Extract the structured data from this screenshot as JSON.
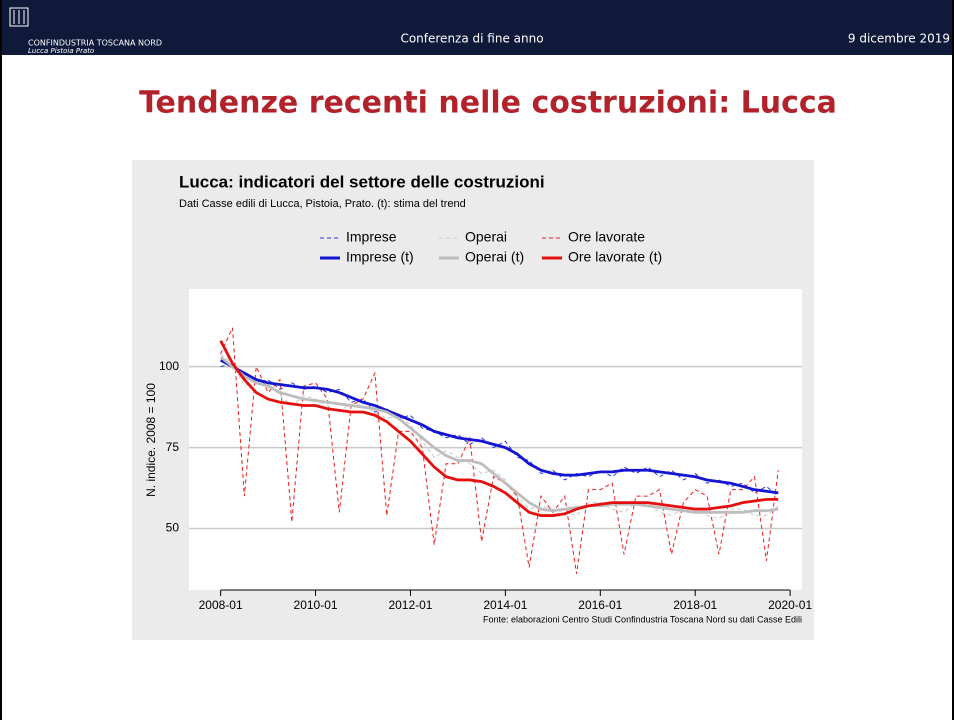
{
  "header": {
    "org": "CONFINDUSTRIA TOSCANA NORD",
    "org_sub": "Lucca Pistoia Prato",
    "event": "Conferenza di fine anno",
    "date": "9 dicembre 2019"
  },
  "title": "Tendenze recenti nelle costruzioni: Lucca",
  "chart_data": {
    "type": "line",
    "title": "Lucca: indicatori del settore delle costruzioni",
    "subtitle": "Dati Casse edili di Lucca, Pistoia, Prato. (t): stima del trend",
    "ylabel": "N. indice. 2008 = 100",
    "caption": "Fonte: elaborazioni Centro Studi Confindustria Toscana Nord su dati Casse Edili",
    "x": [
      "2008-01",
      "2008-04",
      "2008-07",
      "2008-10",
      "2009-01",
      "2009-04",
      "2009-07",
      "2009-10",
      "2010-01",
      "2010-04",
      "2010-07",
      "2010-10",
      "2011-01",
      "2011-04",
      "2011-07",
      "2011-10",
      "2012-01",
      "2012-04",
      "2012-07",
      "2012-10",
      "2013-01",
      "2013-04",
      "2013-07",
      "2013-10",
      "2014-01",
      "2014-04",
      "2014-07",
      "2014-10",
      "2015-01",
      "2015-04",
      "2015-07",
      "2015-10",
      "2016-01",
      "2016-04",
      "2016-07",
      "2016-10",
      "2017-01",
      "2017-04",
      "2017-07",
      "2017-10",
      "2018-01",
      "2018-04",
      "2018-07",
      "2018-10",
      "2019-01",
      "2019-04",
      "2019-07",
      "2019-10"
    ],
    "xlim": [
      "2007-05",
      "2020-04"
    ],
    "xticks": [
      "2008-01",
      "2010-01",
      "2012-01",
      "2014-01",
      "2016-01",
      "2018-01",
      "2020-01"
    ],
    "ylim": [
      31,
      124
    ],
    "yticks": [
      50,
      75,
      100
    ],
    "grid": true,
    "legend": "top",
    "series": [
      {
        "name": "Imprese",
        "color": "#2233e8",
        "dashed": true,
        "values": [
          100,
          101,
          97,
          95,
          96,
          93,
          95,
          93,
          94,
          92,
          93,
          89,
          90,
          86,
          87,
          84,
          85,
          81,
          80,
          78,
          79,
          76,
          78,
          75,
          77,
          72,
          71,
          67,
          68,
          65,
          67,
          66,
          68,
          66,
          69,
          67,
          69,
          66,
          68,
          65,
          67,
          64,
          65,
          63,
          64,
          61,
          63,
          60
        ]
      },
      {
        "name": "Operai",
        "color": "#c8c8c8",
        "dashed": true,
        "values": [
          104,
          101,
          94,
          96,
          95,
          91,
          88,
          91,
          90,
          88,
          86,
          89,
          88,
          86,
          84,
          85,
          82,
          77,
          72,
          74,
          72,
          70,
          67,
          68,
          65,
          60,
          56,
          57,
          56,
          55,
          54,
          58,
          58,
          56,
          55,
          58,
          58,
          55,
          54,
          56,
          56,
          54,
          53,
          56,
          56,
          54,
          54,
          57
        ]
      },
      {
        "name": "Ore lavorate",
        "color": "#ee1c1c",
        "dashed": true,
        "values": [
          104,
          112,
          60,
          100,
          92,
          96,
          52,
          94,
          95,
          90,
          55,
          88,
          90,
          98,
          54,
          80,
          80,
          75,
          45,
          70,
          70,
          78,
          46,
          66,
          64,
          60,
          38,
          60,
          55,
          60,
          36,
          62,
          62,
          64,
          42,
          60,
          60,
          62,
          42,
          58,
          62,
          60,
          42,
          62,
          62,
          66,
          40,
          68
        ]
      },
      {
        "name": "Imprese (t)",
        "color": "#1414d2",
        "dashed": false,
        "values": [
          102,
          100,
          98,
          96,
          95,
          94.5,
          94,
          93.5,
          93.5,
          93,
          92,
          90.5,
          89,
          88,
          86.5,
          85,
          83.5,
          82,
          80,
          79,
          78,
          77.5,
          77,
          76,
          75,
          73,
          70,
          68,
          67,
          66.5,
          66.5,
          67,
          67.5,
          67.5,
          68,
          68,
          68,
          67.5,
          67,
          66.5,
          66,
          65,
          64.5,
          64,
          63,
          62,
          61.5,
          61
        ]
      },
      {
        "name": "Operai (t)",
        "color": "#bdbdbd",
        "dashed": false,
        "values": [
          103,
          100,
          97,
          95,
          94,
          92,
          91,
          90,
          89.5,
          89,
          88.5,
          88,
          87.5,
          87,
          86,
          84,
          81,
          78,
          75,
          72.5,
          71,
          71,
          70,
          67,
          64,
          61,
          58,
          56,
          55.5,
          56,
          56.5,
          57,
          57,
          57.5,
          57.5,
          57.5,
          57,
          56.5,
          56,
          55.5,
          55,
          55,
          55,
          55,
          55,
          55.5,
          55.5,
          56
        ]
      },
      {
        "name": "Ore lavorate (t)",
        "color": "#e41010",
        "dashed": false,
        "values": [
          108,
          101,
          96,
          92,
          90,
          89,
          88.5,
          88,
          88,
          87,
          86.5,
          86,
          86,
          85,
          83,
          80,
          77,
          73,
          69,
          66,
          65,
          65,
          64.5,
          63,
          61,
          58,
          55,
          54,
          54,
          54.5,
          56,
          57,
          57.5,
          58,
          58,
          58,
          58,
          57.5,
          57,
          56.5,
          56,
          56,
          56.5,
          57,
          58,
          58.5,
          59,
          59
        ]
      }
    ]
  }
}
